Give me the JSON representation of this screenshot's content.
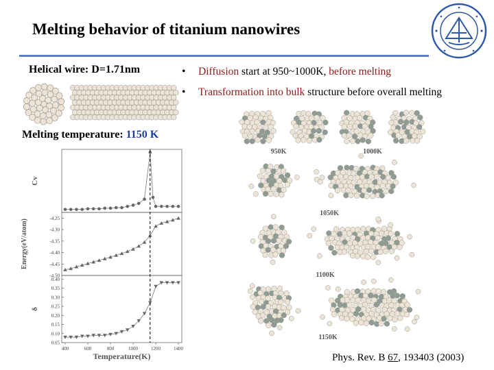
{
  "slide": {
    "title": "Melting behavior of titanium nanowires",
    "helical_label": "Helical wire: D=1.71nm",
    "bullets": [
      {
        "pre": "Diffusion",
        "mid": " start at 950~1000K, ",
        "post": "before melting"
      },
      {
        "pre": "Transformation into bulk",
        "mid": " structure before overall melting",
        "post": ""
      }
    ],
    "melting_label": "Melting temperature: ",
    "melting_value": "1150 K",
    "reference": {
      "prefix": "Phys. Rev. B ",
      "volume": "67",
      "suffix": ", 193403 (2003)"
    },
    "snapshot_labels": [
      "950K",
      "1000K",
      "1050K",
      "1100K",
      "1150K"
    ]
  },
  "colors": {
    "accent_rule": "#5b7fc7",
    "bullet_red": "#8b1a1a",
    "value_blue": "#1f3c9e",
    "atom_light": "#ece4d6",
    "atom_dark": "#8f9c94"
  },
  "chart_data": [
    {
      "type": "line",
      "ylabel": "Cv",
      "marker": "circle",
      "x": [
        400,
        450,
        500,
        550,
        600,
        650,
        700,
        750,
        800,
        850,
        900,
        950,
        1000,
        1050,
        1100,
        1150,
        1175,
        1200,
        1250,
        1300,
        1350,
        1400
      ],
      "y": [
        0.05,
        0.05,
        0.05,
        0.05,
        0.06,
        0.06,
        0.06,
        0.07,
        0.07,
        0.08,
        0.08,
        0.1,
        0.12,
        0.15,
        0.22,
        1.0,
        0.25,
        0.1,
        0.1,
        0.1,
        0.1,
        0.1
      ],
      "ylim": [
        0,
        1.05
      ]
    },
    {
      "type": "line",
      "ylabel": "Energy(eV/atom)",
      "marker": "triangle-up",
      "x": [
        400,
        450,
        500,
        550,
        600,
        650,
        700,
        750,
        800,
        850,
        900,
        950,
        1000,
        1050,
        1100,
        1150,
        1200,
        1250,
        1300,
        1350,
        1400
      ],
      "y": [
        -4.475,
        -4.47,
        -4.462,
        -4.455,
        -4.448,
        -4.441,
        -4.434,
        -4.427,
        -4.42,
        -4.412,
        -4.404,
        -4.395,
        -4.385,
        -4.372,
        -4.355,
        -4.325,
        -4.285,
        -4.272,
        -4.265,
        -4.258,
        -4.25
      ],
      "yticks": [
        -4.5,
        -4.45,
        -4.4,
        -4.35,
        -4.3,
        -4.25
      ],
      "ylim": [
        -4.5,
        -4.225
      ]
    },
    {
      "type": "line",
      "ylabel": "δ",
      "xlabel": "Temperature(K)",
      "marker": "triangle-down",
      "x": [
        400,
        450,
        500,
        550,
        600,
        650,
        700,
        750,
        800,
        850,
        900,
        950,
        1000,
        1050,
        1100,
        1150,
        1200,
        1250,
        1300,
        1350,
        1400
      ],
      "y": [
        0.08,
        0.08,
        0.08,
        0.085,
        0.085,
        0.09,
        0.09,
        0.09,
        0.095,
        0.1,
        0.11,
        0.12,
        0.14,
        0.17,
        0.21,
        0.27,
        0.36,
        0.38,
        0.38,
        0.38,
        0.38
      ],
      "yticks": [
        0.05,
        0.1,
        0.15,
        0.2,
        0.25,
        0.3,
        0.35,
        0.4
      ],
      "ylim": [
        0.05,
        0.42
      ],
      "xticks": [
        400,
        600,
        800,
        1000,
        1200,
        1400
      ],
      "xlim": [
        370,
        1430
      ]
    }
  ],
  "melting_marker_x": 1150
}
